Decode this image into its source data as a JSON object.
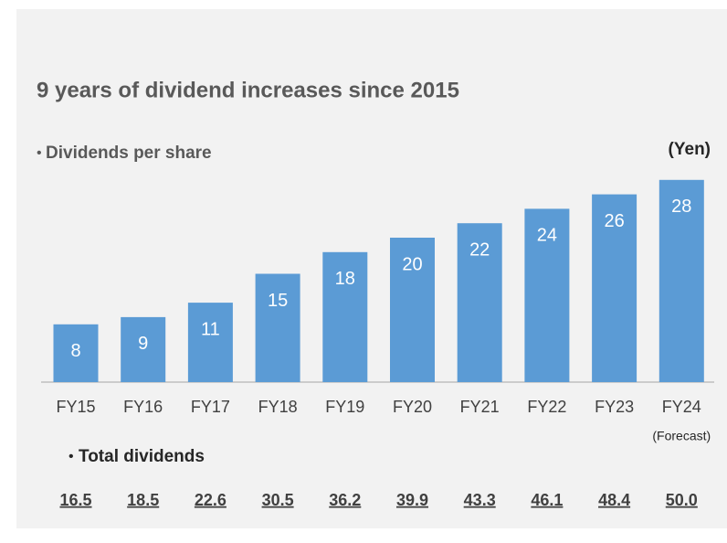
{
  "chart_data": {
    "type": "bar",
    "title": "9 years of dividend increases since 2015",
    "subtitle": "Dividends per share",
    "unit": "(Yen)",
    "categories": [
      "FY15",
      "FY16",
      "FY17",
      "FY18",
      "FY19",
      "FY20",
      "FY21",
      "FY22",
      "FY23",
      "FY24"
    ],
    "values": [
      8,
      9,
      11,
      15,
      18,
      20,
      22,
      24,
      26,
      28
    ],
    "color": "#5b9bd5",
    "annotation": "(Forecast)",
    "totals_title": "Total dividends",
    "totals": [
      16.5,
      18.5,
      22.6,
      30.5,
      36.2,
      39.9,
      43.3,
      46.1,
      48.4,
      50.0
    ],
    "totals_labels": [
      "16.5",
      "18.5",
      "22.6",
      "30.5",
      "36.2",
      "39.9",
      "43.3",
      "46.1",
      "48.4",
      "50.0"
    ]
  }
}
